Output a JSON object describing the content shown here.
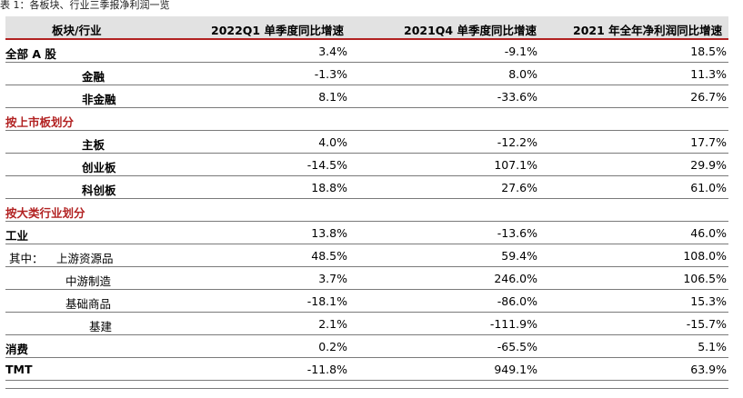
{
  "caption": "表 1：各板块、行业三季报净利润一览",
  "headers": [
    "板块/行业",
    "2022Q1 单季度同比增速",
    "2021Q4 单季度同比增速",
    "2021 年全年净利润同比增速"
  ],
  "rows": [
    {
      "label": "全部 A 股",
      "v1": "3.4%",
      "v2": "-9.1%",
      "v3": "18.5%"
    },
    {
      "label": "金融",
      "v1": "-1.3%",
      "v2": "8.0%",
      "v3": "11.3%"
    },
    {
      "label": "非金融",
      "v1": "8.1%",
      "v2": "-33.6%",
      "v3": "26.7%"
    },
    {
      "label": "按上市板划分"
    },
    {
      "label": "主板",
      "v1": "4.0%",
      "v2": "-12.2%",
      "v3": "17.7%"
    },
    {
      "label": "创业板",
      "v1": "-14.5%",
      "v2": "107.1%",
      "v3": "29.9%"
    },
    {
      "label": "科创板",
      "v1": "18.8%",
      "v2": "27.6%",
      "v3": "61.0%"
    },
    {
      "label": "按大类行业划分"
    },
    {
      "label": "工业",
      "v1": "13.8%",
      "v2": "-13.6%",
      "v3": "46.0%"
    },
    {
      "prefix": "其中：",
      "label": "上游资源品",
      "v1": "48.5%",
      "v2": "59.4%",
      "v3": "108.0%"
    },
    {
      "label": "中游制造",
      "v1": "3.7%",
      "v2": "246.0%",
      "v3": "106.5%"
    },
    {
      "label": "基础商品",
      "v1": "-18.1%",
      "v2": "-86.0%",
      "v3": "15.3%"
    },
    {
      "label": "基建",
      "v1": "2.1%",
      "v2": "-111.9%",
      "v3": "-15.7%"
    },
    {
      "label": "消费",
      "v1": "0.2%",
      "v2": "-65.5%",
      "v3": "5.1%"
    },
    {
      "label": "TMT",
      "v1": "-11.8%",
      "v2": "949.1%",
      "v3": "63.9%"
    }
  ]
}
